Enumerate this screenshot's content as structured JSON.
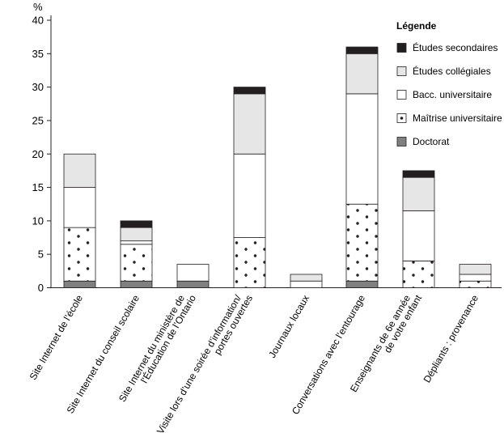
{
  "chart_data": {
    "type": "bar",
    "stacked": true,
    "ylabel": "%",
    "ylim": [
      0,
      40
    ],
    "yticks": [
      0,
      5,
      10,
      15,
      20,
      25,
      30,
      35,
      40
    ],
    "grid": false,
    "legend_position": "top-right",
    "legend_title": "Légende",
    "categories": [
      [
        "Site Internet de l’école"
      ],
      [
        "Site Internet du conseil scolaire"
      ],
      [
        "Site Internet du ministère de",
        "l’Éducation de l’Ontario"
      ],
      [
        "Visite lors d’une soirée d’information/",
        "portes ouvertes"
      ],
      [
        "Journaux locaux"
      ],
      [
        "Conversations avec l’entourage"
      ],
      [
        "Enseignants de 6e année",
        "de votre enfant"
      ],
      [
        "Dépliants : provenance"
      ]
    ],
    "series": [
      {
        "name": "Doctorat",
        "fill": "dark-gray",
        "values": [
          1,
          1,
          1,
          0,
          0,
          1,
          0,
          0
        ]
      },
      {
        "name": "Maîtrise universitaire",
        "fill": "dots",
        "values": [
          8,
          5.5,
          0,
          7.5,
          0,
          11.5,
          4,
          1
        ]
      },
      {
        "name": "Bacc. universitaire",
        "fill": "white",
        "values": [
          6,
          0.5,
          2.5,
          12.5,
          1,
          16.5,
          7.5,
          1
        ]
      },
      {
        "name": "Études collégiales",
        "fill": "light-gray",
        "values": [
          5,
          2,
          0,
          9,
          1,
          6,
          5,
          1.5
        ]
      },
      {
        "name": "Études secondaires",
        "fill": "black",
        "values": [
          0,
          1,
          0,
          1,
          0,
          1,
          1,
          0
        ]
      }
    ],
    "legend_order": [
      "Études secondaires",
      "Études collégiales",
      "Bacc. universitaire",
      "Maîtrise universitaire",
      "Doctorat"
    ],
    "colors": {
      "dark-gray": "#808080",
      "light-gray": "#e6e6e6",
      "white": "#ffffff",
      "black": "#231f20",
      "dots": "#ffffff",
      "stroke": "#231f20"
    }
  }
}
